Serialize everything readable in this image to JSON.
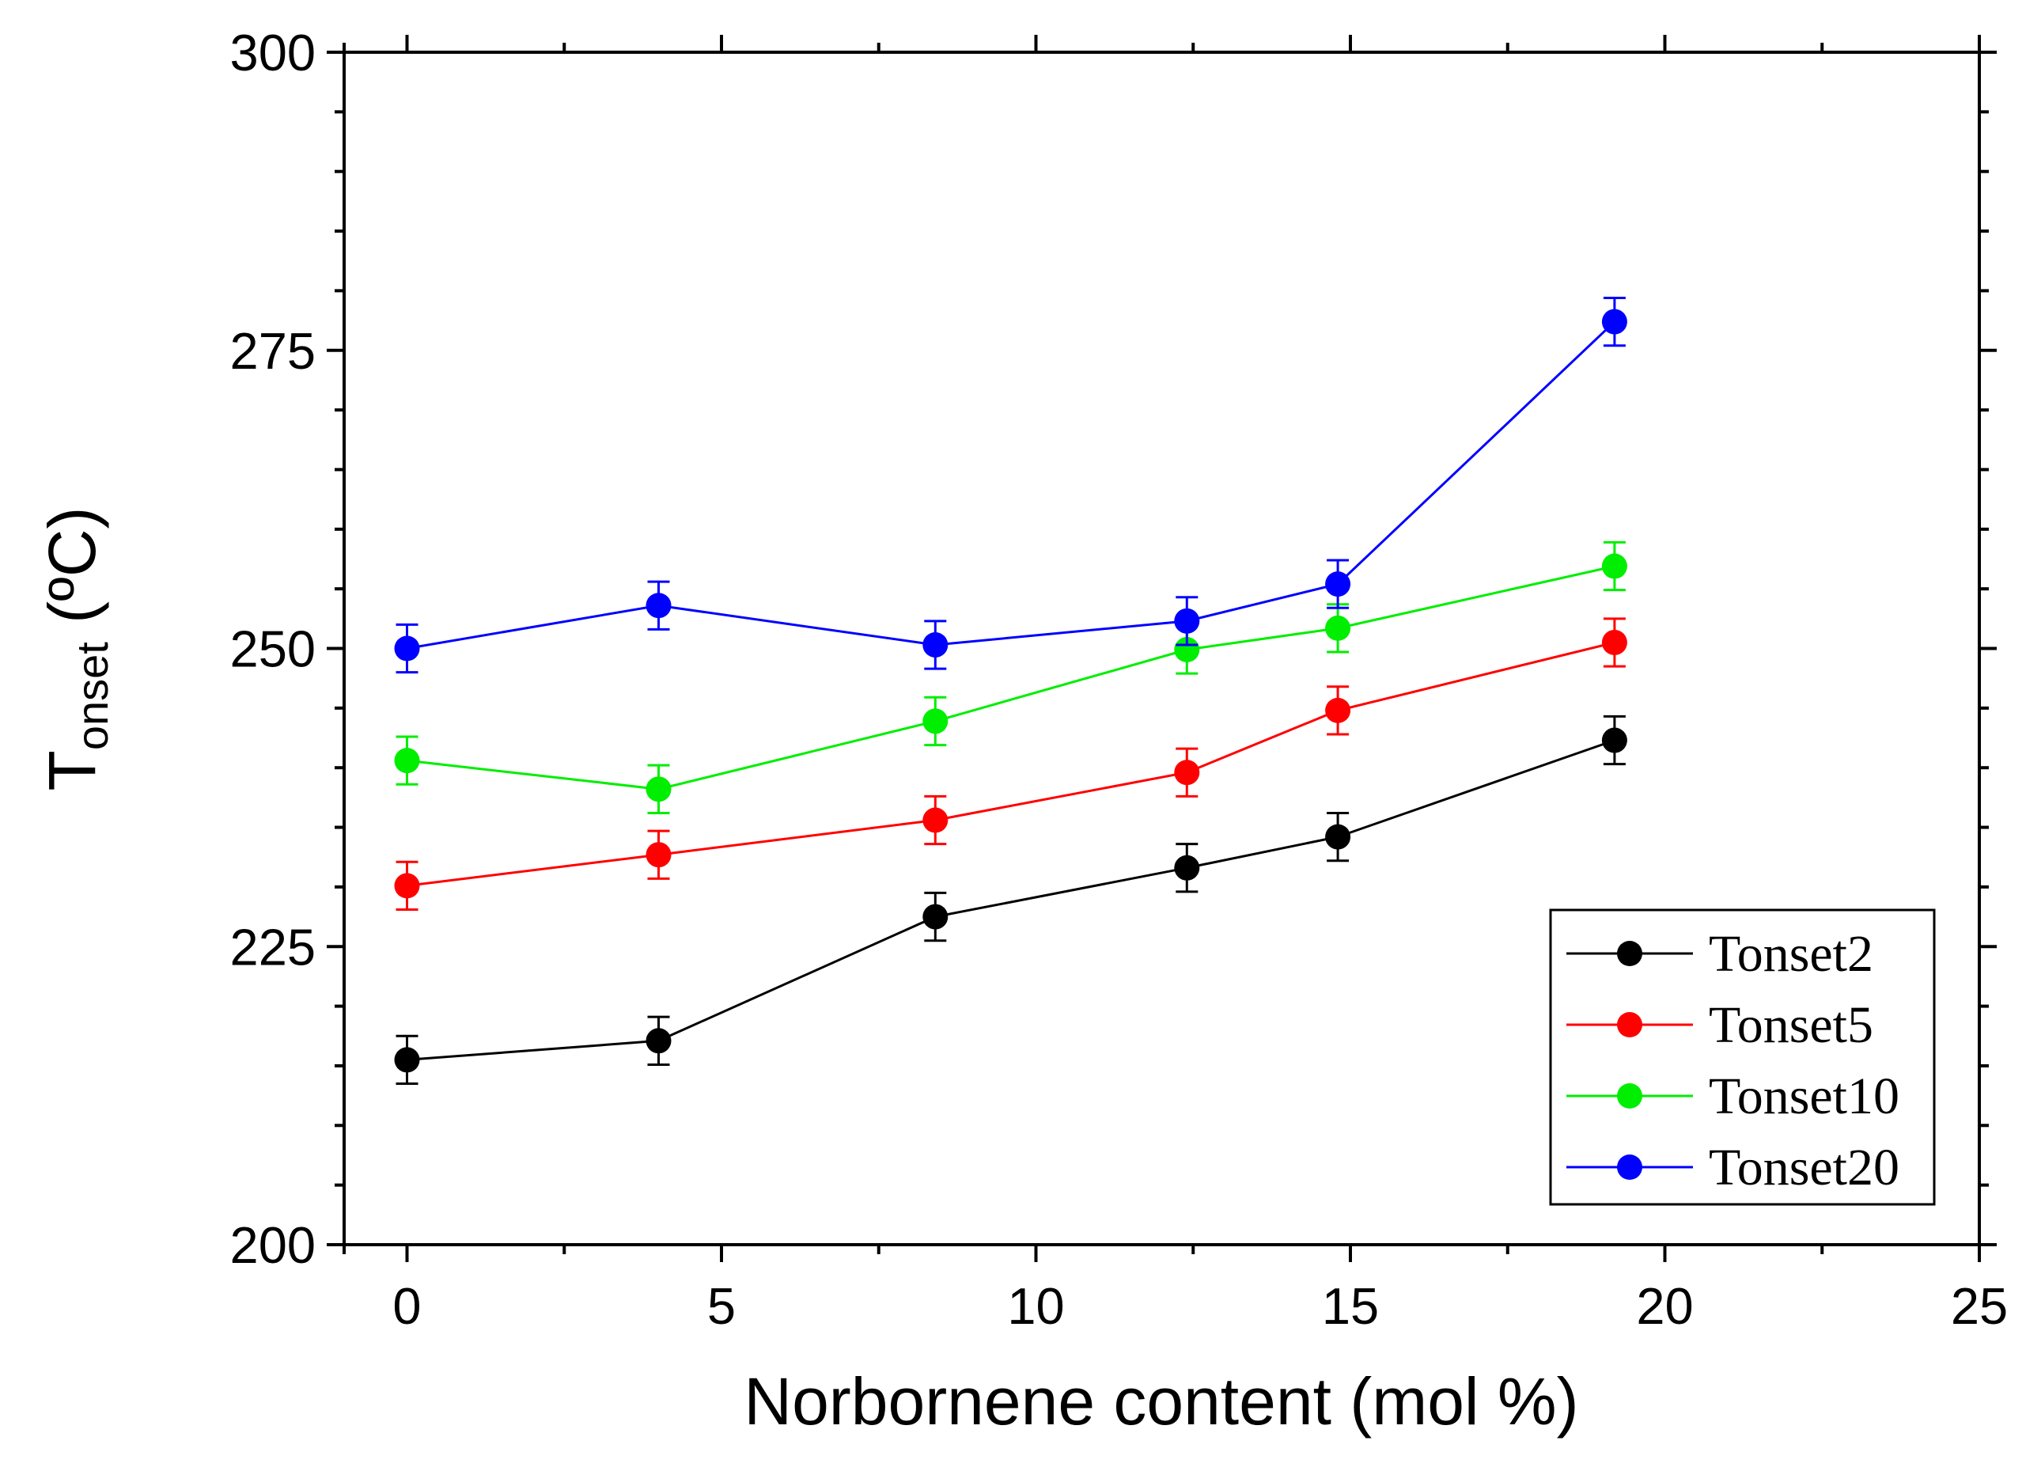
{
  "chart_data": {
    "type": "line",
    "title": "",
    "xlabel": "Norbornene content (mol %)",
    "ylabel": {
      "main": "T",
      "subscript": "onset",
      "unit": " (ºC)"
    },
    "xlim": [
      -1,
      25
    ],
    "ylim": [
      200,
      300
    ],
    "x_ticks": [
      0,
      5,
      10,
      15,
      20,
      25
    ],
    "y_ticks": [
      200,
      225,
      250,
      275,
      300
    ],
    "grid": false,
    "legend_position": "bottom-right",
    "x": [
      0,
      4,
      8.4,
      12.4,
      14.8,
      19.2
    ],
    "series": [
      {
        "name": "Tonset2",
        "color": "#000000",
        "values": [
          215.5,
          217.1,
          227.5,
          231.6,
          234.2,
          242.3
        ],
        "error": 2.0
      },
      {
        "name": "Tonset5",
        "color": "#ff0000",
        "values": [
          230.1,
          232.7,
          235.6,
          239.6,
          244.8,
          250.5
        ],
        "error": 2.0
      },
      {
        "name": "Tonset10",
        "color": "#00ee00",
        "values": [
          240.6,
          238.2,
          243.9,
          249.9,
          251.7,
          256.9
        ],
        "error": 2.0
      },
      {
        "name": "Tonset20",
        "color": "#0000ff",
        "values": [
          250.0,
          253.6,
          250.3,
          252.3,
          255.4,
          277.4
        ],
        "error": 2.0
      }
    ]
  }
}
